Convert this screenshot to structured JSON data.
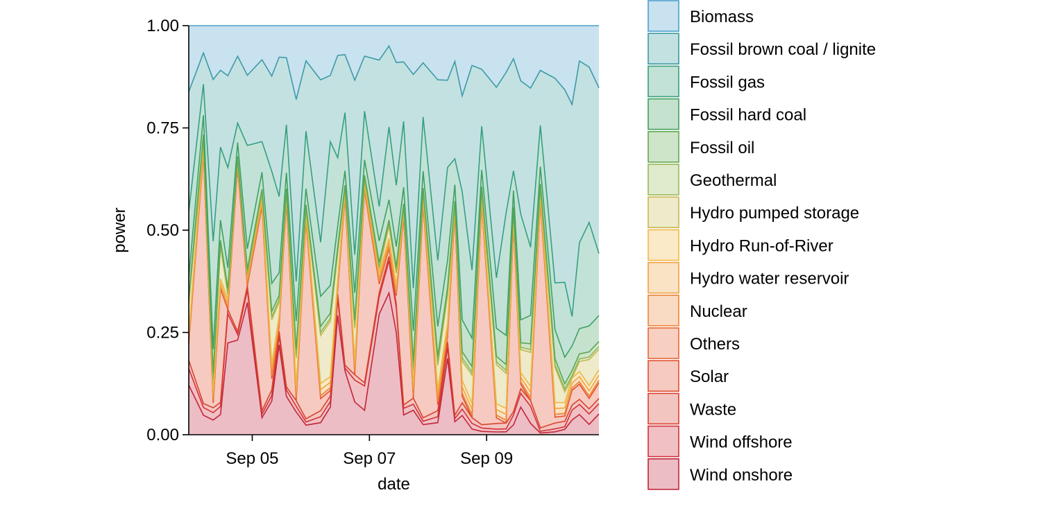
{
  "chart_data": {
    "type": "area",
    "stacked": true,
    "normalized": true,
    "title": "",
    "xlabel": "date",
    "ylabel": "power",
    "xlim": [
      "2023-09-03 22:00",
      "2023-09-10 22:00"
    ],
    "ylim": [
      0,
      1
    ],
    "x_ticks": [
      {
        "label": "Sep 05",
        "value": "2023-09-05 00:00"
      },
      {
        "label": "Sep 07",
        "value": "2023-09-07 00:00"
      },
      {
        "label": "Sep 09",
        "value": "2023-09-09 00:00"
      }
    ],
    "y_ticks": [
      {
        "label": "0.00",
        "value": 0
      },
      {
        "label": "0.25",
        "value": 0.25
      },
      {
        "label": "0.50",
        "value": 0.5
      },
      {
        "label": "0.75",
        "value": 0.75
      },
      {
        "label": "1.00",
        "value": 1
      }
    ],
    "grid": false,
    "legend_position": "right",
    "x": [
      "2023-09-03 22:00",
      "2023-09-04 04:00",
      "2023-09-04 08:00",
      "2023-09-04 11:00",
      "2023-09-04 14:00",
      "2023-09-04 18:00",
      "2023-09-04 22:00",
      "2023-09-05 04:00",
      "2023-09-05 08:00",
      "2023-09-05 11:00",
      "2023-09-05 14:00",
      "2023-09-05 18:00",
      "2023-09-05 22:00",
      "2023-09-06 04:00",
      "2023-09-06 08:00",
      "2023-09-06 11:00",
      "2023-09-06 14:00",
      "2023-09-06 18:00",
      "2023-09-06 22:00",
      "2023-09-07 04:00",
      "2023-09-07 08:00",
      "2023-09-07 11:00",
      "2023-09-07 14:00",
      "2023-09-07 18:00",
      "2023-09-07 22:00",
      "2023-09-08 04:00",
      "2023-09-08 08:00",
      "2023-09-08 11:00",
      "2023-09-08 14:00",
      "2023-09-08 18:00",
      "2023-09-08 22:00",
      "2023-09-09 04:00",
      "2023-09-09 08:00",
      "2023-09-09 11:00",
      "2023-09-09 14:00",
      "2023-09-09 18:00",
      "2023-09-09 22:00",
      "2023-09-10 04:00",
      "2023-09-10 08:00",
      "2023-09-10 11:00",
      "2023-09-10 14:00",
      "2023-09-10 18:00",
      "2023-09-10 22:00"
    ],
    "series": [
      {
        "name": "Wind onshore",
        "color": "#c0243a",
        "values": [
          0.12,
          0.05,
          0.03,
          0.05,
          0.22,
          0.34,
          0.32,
          0.05,
          0.06,
          0.2,
          0.12,
          0.04,
          0.03,
          0.02,
          0.05,
          0.28,
          0.22,
          0.06,
          0.08,
          0.28,
          0.35,
          0.25,
          0.06,
          0.04,
          0.03,
          0.02,
          0.14,
          0.04,
          0.03,
          0.01,
          0.01,
          0.005,
          0.005,
          0.03,
          0.06,
          0.02,
          0.005,
          0.005,
          0.01,
          0.03,
          0.04,
          0.02,
          0.04
        ]
      },
      {
        "name": "Wind offshore",
        "color": "#d0303a",
        "values": [
          0.04,
          0.02,
          0.015,
          0.02,
          0.07,
          0.02,
          0.03,
          0.01,
          0.01,
          0.02,
          0.02,
          0.01,
          0.01,
          0.01,
          0.01,
          0.04,
          0.01,
          0.04,
          0.08,
          0.04,
          0.08,
          0.06,
          0.02,
          0.01,
          0.01,
          0.01,
          0.02,
          0.01,
          0.01,
          0.01,
          0.01,
          0.005,
          0.005,
          0.03,
          0.03,
          0.03,
          0.005,
          0.005,
          0.005,
          0.02,
          0.02,
          0.02,
          0.02
        ]
      },
      {
        "name": "Waste",
        "color": "#d84030",
        "values": [
          0.02,
          0.01,
          0.01,
          0.01,
          0.01,
          0.01,
          0.01,
          0.01,
          0.01,
          0.01,
          0.01,
          0.01,
          0.01,
          0.01,
          0.01,
          0.01,
          0.01,
          0.01,
          0.01,
          0.01,
          0.01,
          0.01,
          0.01,
          0.01,
          0.01,
          0.01,
          0.01,
          0.01,
          0.01,
          0.01,
          0.01,
          0.01,
          0.01,
          0.01,
          0.01,
          0.01,
          0.01,
          0.01,
          0.01,
          0.01,
          0.01,
          0.01,
          0.01
        ]
      },
      {
        "name": "Solar",
        "color": "#e05030",
        "values": [
          0.04,
          0.64,
          0.01,
          0.28,
          0.0,
          0.59,
          0.0,
          0.6,
          0.02,
          0.01,
          0.58,
          0.0,
          0.62,
          0.02,
          0.01,
          0.01,
          0.58,
          0.0,
          0.63,
          0.02,
          0.02,
          0.02,
          0.57,
          0.0,
          0.63,
          0.01,
          0.01,
          0.62,
          0.01,
          0.0,
          0.66,
          0.01,
          0.0,
          0.57,
          0.01,
          0.0,
          0.66,
          0.01,
          0.01,
          0.03,
          0.03,
          0.02,
          0.03
        ]
      },
      {
        "name": "Others",
        "color": "#e66535",
        "values": [
          0.005,
          0.005,
          0.005,
          0.005,
          0.005,
          0.005,
          0.005,
          0.005,
          0.005,
          0.005,
          0.005,
          0.005,
          0.005,
          0.005,
          0.005,
          0.005,
          0.005,
          0.005,
          0.005,
          0.005,
          0.005,
          0.005,
          0.005,
          0.005,
          0.005,
          0.005,
          0.005,
          0.005,
          0.005,
          0.005,
          0.005,
          0.005,
          0.005,
          0.005,
          0.005,
          0.005,
          0.005,
          0.005,
          0.005,
          0.005,
          0.005,
          0.005,
          0.005
        ]
      },
      {
        "name": "Nuclear",
        "color": "#ec8535",
        "values": [
          0,
          0,
          0,
          0,
          0,
          0,
          0,
          0,
          0,
          0,
          0,
          0,
          0,
          0,
          0,
          0,
          0,
          0,
          0,
          0,
          0,
          0,
          0,
          0,
          0,
          0,
          0,
          0,
          0,
          0,
          0,
          0,
          0,
          0,
          0,
          0,
          0,
          0,
          0,
          0,
          0,
          0,
          0
        ]
      },
      {
        "name": "Hydro water reservoir",
        "color": "#f0a040",
        "values": [
          0.01,
          0.01,
          0.01,
          0.01,
          0.01,
          0.01,
          0.01,
          0.01,
          0.01,
          0.01,
          0.01,
          0.01,
          0.01,
          0.01,
          0.01,
          0.01,
          0.01,
          0.01,
          0.01,
          0.01,
          0.01,
          0.01,
          0.01,
          0.01,
          0.01,
          0.01,
          0.01,
          0.01,
          0.01,
          0.01,
          0.01,
          0.01,
          0.01,
          0.01,
          0.01,
          0.01,
          0.01,
          0.01,
          0.01,
          0.01,
          0.01,
          0.01,
          0.01
        ]
      },
      {
        "name": "Hydro Run-of-River",
        "color": "#f2b845",
        "values": [
          0.01,
          0.01,
          0.01,
          0.01,
          0.01,
          0.01,
          0.01,
          0.01,
          0.01,
          0.01,
          0.01,
          0.01,
          0.01,
          0.01,
          0.01,
          0.01,
          0.01,
          0.01,
          0.01,
          0.01,
          0.01,
          0.01,
          0.01,
          0.01,
          0.01,
          0.01,
          0.01,
          0.01,
          0.01,
          0.01,
          0.01,
          0.01,
          0.01,
          0.01,
          0.01,
          0.01,
          0.01,
          0.01,
          0.01,
          0.01,
          0.01,
          0.01,
          0.01
        ]
      },
      {
        "name": "Hydro pumped storage",
        "color": "#c8b850",
        "values": [
          0.07,
          0.01,
          0.02,
          0.08,
          0.01,
          0.0,
          0.0,
          0.01,
          0.08,
          0.03,
          0.0,
          0.05,
          0.01,
          0.08,
          0.1,
          0.06,
          0.0,
          0.06,
          0.01,
          0.01,
          0.03,
          0.03,
          0.0,
          0.02,
          0.01,
          0.04,
          0.05,
          0.0,
          0.03,
          0.05,
          0.01,
          0.07,
          0.06,
          0.01,
          0.05,
          0.06,
          0.01,
          0.06,
          0.02,
          0.0,
          0.02,
          0.05,
          0.04
        ]
      },
      {
        "name": "Geothermal",
        "color": "#98b855",
        "values": [
          0.005,
          0.005,
          0.005,
          0.005,
          0.005,
          0.005,
          0.005,
          0.005,
          0.005,
          0.005,
          0.005,
          0.005,
          0.005,
          0.005,
          0.005,
          0.005,
          0.005,
          0.005,
          0.005,
          0.005,
          0.005,
          0.005,
          0.005,
          0.005,
          0.005,
          0.005,
          0.005,
          0.005,
          0.005,
          0.005,
          0.005,
          0.005,
          0.005,
          0.005,
          0.005,
          0.005,
          0.005,
          0.005,
          0.005,
          0.005,
          0.005,
          0.005,
          0.005
        ]
      },
      {
        "name": "Fossil oil",
        "color": "#60a850",
        "values": [
          0.01,
          0.01,
          0.01,
          0.01,
          0.01,
          0.01,
          0.01,
          0.01,
          0.01,
          0.01,
          0.01,
          0.01,
          0.01,
          0.01,
          0.01,
          0.01,
          0.01,
          0.01,
          0.01,
          0.01,
          0.01,
          0.01,
          0.01,
          0.01,
          0.01,
          0.01,
          0.01,
          0.01,
          0.01,
          0.01,
          0.01,
          0.01,
          0.01,
          0.01,
          0.01,
          0.01,
          0.01,
          0.01,
          0.01,
          0.01,
          0.01,
          0.01,
          0.01
        ]
      },
      {
        "name": "Fossil hard coal",
        "color": "#40a060",
        "values": [
          0.05,
          0.05,
          0.05,
          0.05,
          0.05,
          0.05,
          0.05,
          0.05,
          0.05,
          0.05,
          0.05,
          0.05,
          0.05,
          0.05,
          0.05,
          0.05,
          0.05,
          0.05,
          0.05,
          0.05,
          0.05,
          0.05,
          0.05,
          0.05,
          0.05,
          0.05,
          0.05,
          0.05,
          0.05,
          0.05,
          0.05,
          0.05,
          0.05,
          0.05,
          0.05,
          0.05,
          0.05,
          0.05,
          0.05,
          0.05,
          0.05,
          0.05,
          0.05
        ]
      },
      {
        "name": "Fossil gas",
        "color": "#35a07a",
        "values": [
          0.16,
          0.08,
          0.22,
          0.18,
          0.24,
          0.07,
          0.25,
          0.09,
          0.2,
          0.17,
          0.15,
          0.07,
          0.18,
          0.09,
          0.26,
          0.16,
          0.2,
          0.07,
          0.16,
          0.08,
          0.18,
          0.15,
          0.2,
          0.07,
          0.16,
          0.11,
          0.17,
          0.08,
          0.2,
          0.12,
          0.13,
          0.09,
          0.21,
          0.06,
          0.23,
          0.12,
          0.12,
          0.08,
          0.14,
          0.06,
          0.17,
          0.2,
          0.12
        ]
      },
      {
        "name": "Fossil brown coal / lignite",
        "color": "#3a9aa0",
        "values": [
          0.29,
          0.08,
          0.33,
          0.19,
          0.22,
          0.24,
          0.17,
          0.24,
          0.17,
          0.31,
          0.21,
          0.32,
          0.22,
          0.27,
          0.12,
          0.24,
          0.2,
          0.32,
          0.18,
          0.34,
          0.2,
          0.3,
          0.18,
          0.35,
          0.16,
          0.3,
          0.16,
          0.3,
          0.15,
          0.36,
          0.17,
          0.34,
          0.24,
          0.34,
          0.29,
          0.28,
          0.16,
          0.35,
          0.36,
          0.43,
          0.36,
          0.3,
          0.32
        ]
      },
      {
        "name": "Biomass",
        "color": "#4aa0cc",
        "values": [
          0.16,
          0.07,
          0.11,
          0.11,
          0.12,
          0.11,
          0.12,
          0.1,
          0.09,
          0.07,
          0.1,
          0.13,
          0.11,
          0.09,
          0.09,
          0.07,
          0.1,
          0.1,
          0.1,
          0.08,
          0.05,
          0.09,
          0.11,
          0.08,
          0.11,
          0.09,
          0.1,
          0.11,
          0.11,
          0.07,
          0.13,
          0.11,
          0.08,
          0.1,
          0.12,
          0.11,
          0.13,
          0.09,
          0.12,
          0.16,
          0.07,
          0.08,
          0.12
        ]
      }
    ],
    "legend_order": [
      "Biomass",
      "Fossil brown coal / lignite",
      "Fossil gas",
      "Fossil hard coal",
      "Fossil oil",
      "Geothermal",
      "Hydro pumped storage",
      "Hydro Run-of-River",
      "Hydro water reservoir",
      "Nuclear",
      "Others",
      "Solar",
      "Waste",
      "Wind offshore",
      "Wind onshore"
    ]
  }
}
